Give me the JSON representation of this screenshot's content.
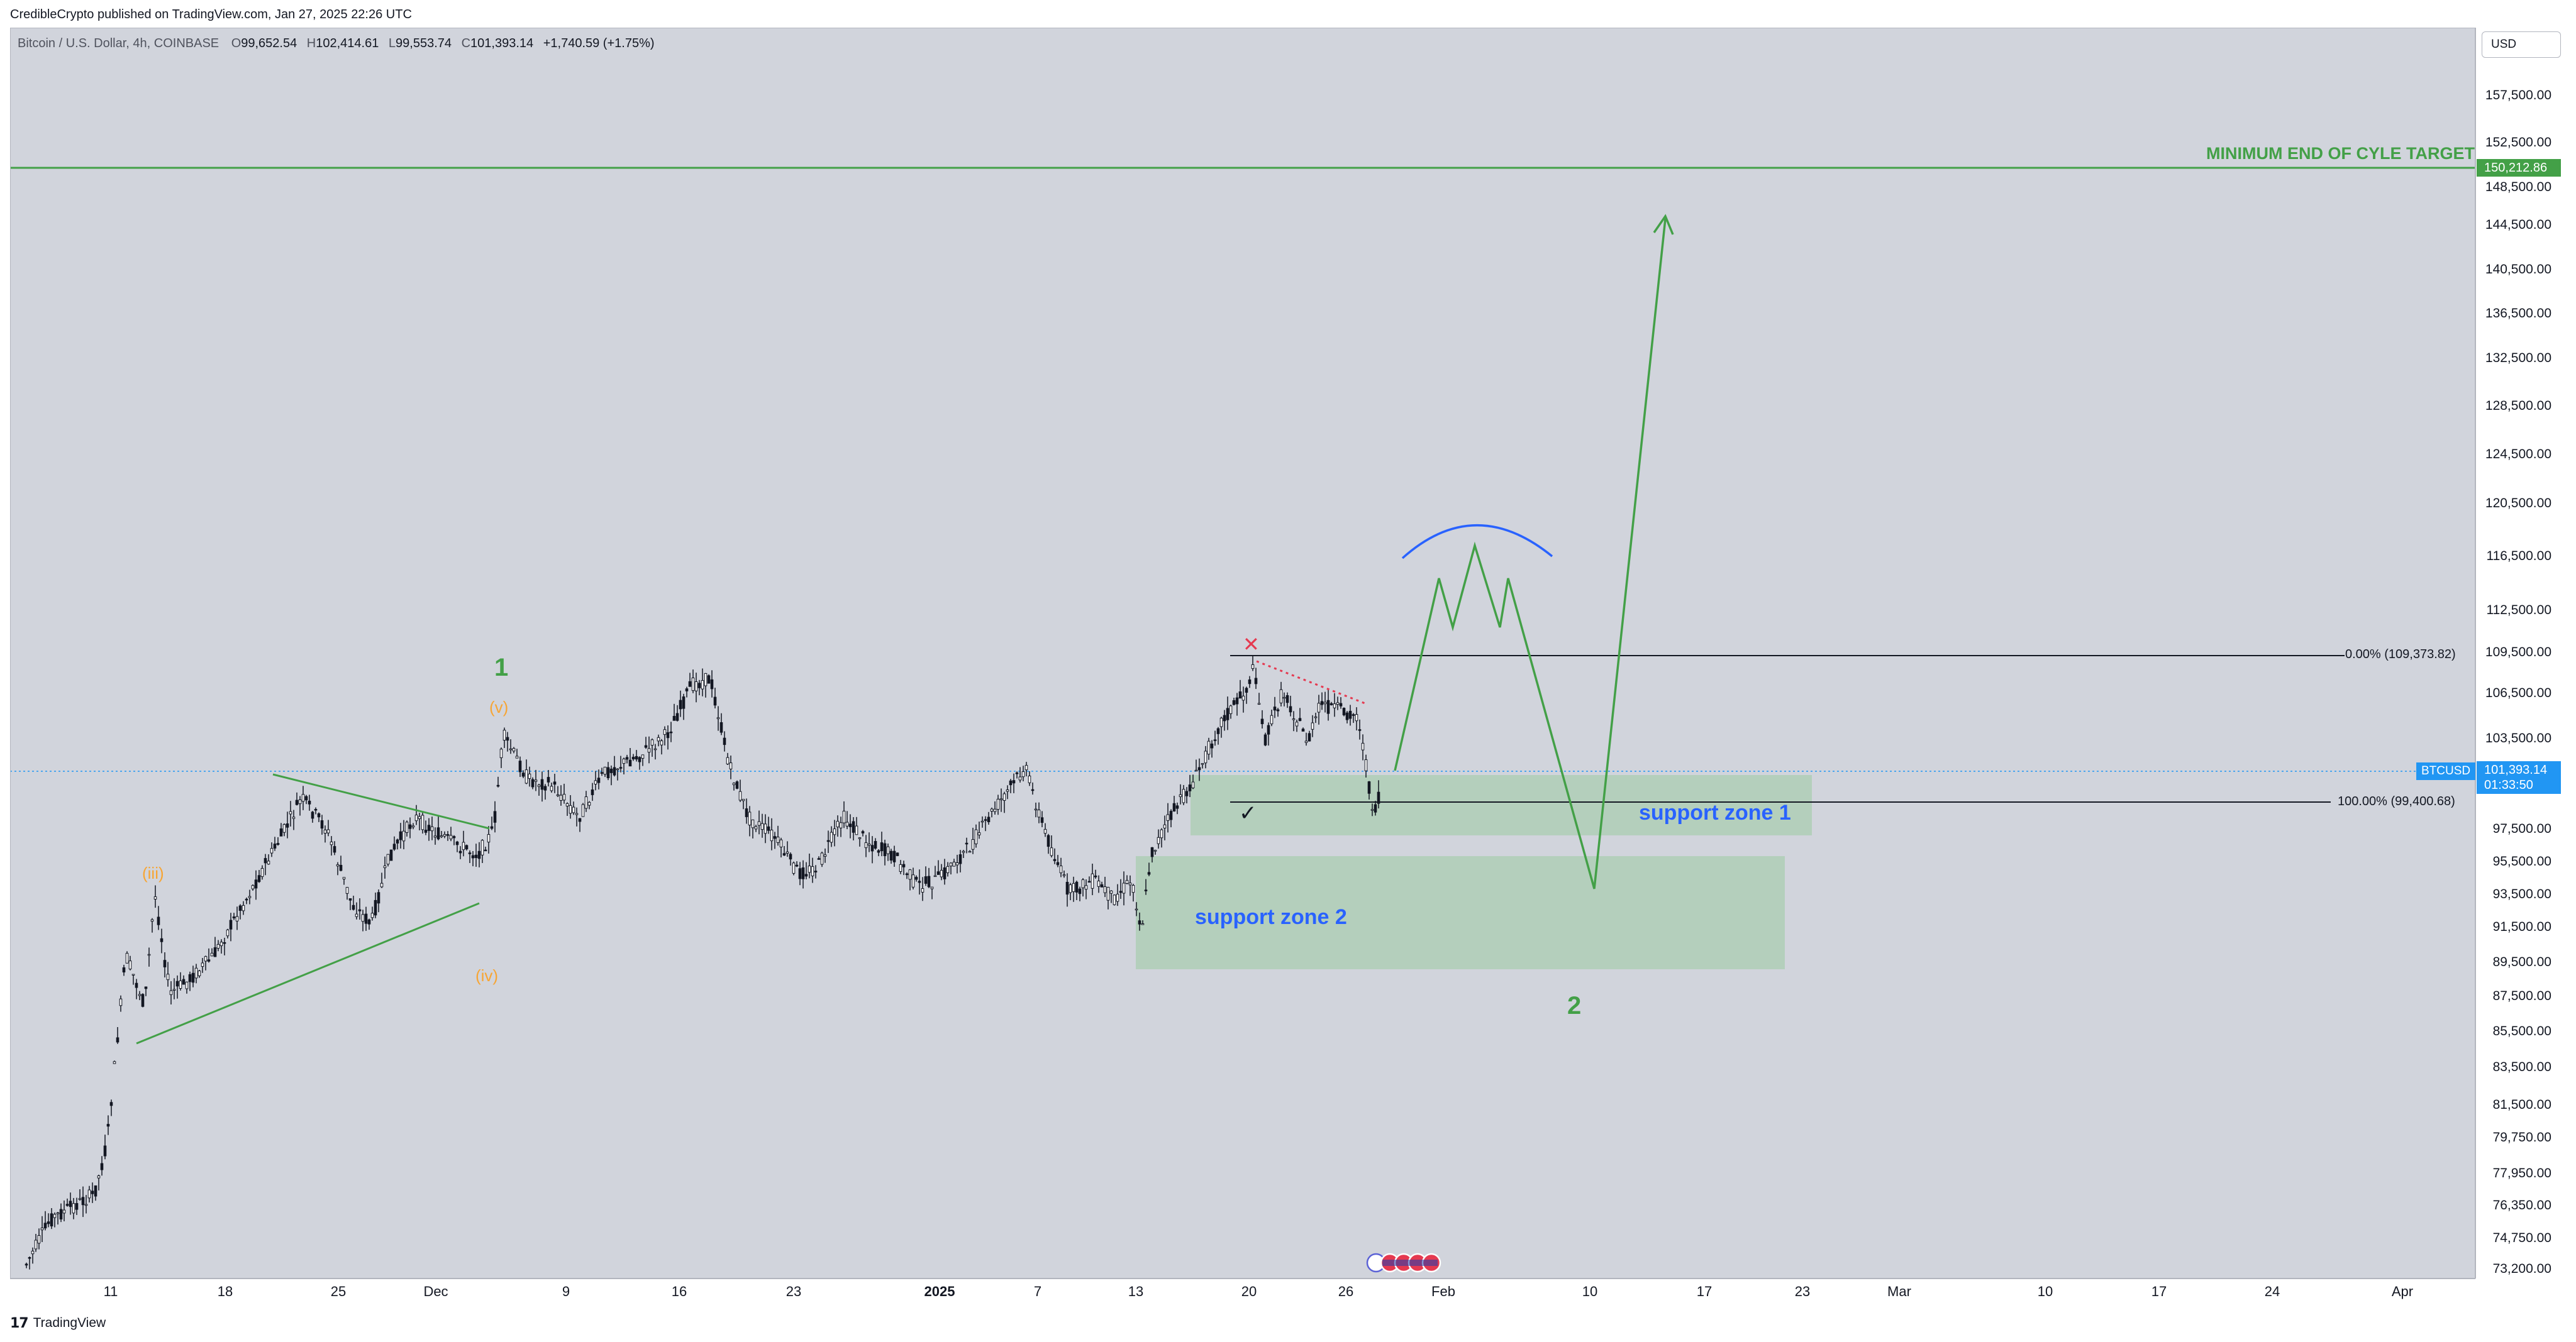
{
  "header": {
    "published_by": "CredibleCrypto published on TradingView.com, Jan 27, 2025 22:26 UTC"
  },
  "ticker": {
    "name": "Bitcoin / U.S. Dollar, 4h, COINBASE",
    "open_label": "O",
    "open": "99,652.54",
    "high_label": "H",
    "high": "102,414.61",
    "low_label": "L",
    "low": "99,553.74",
    "close_label": "C",
    "close": "101,393.14",
    "change": "+1,740.59 (+1.75%)"
  },
  "currency": "USD",
  "price_ticks": [
    "157,500.00",
    "152,500.00",
    "148,500.00",
    "144,500.00",
    "140,500.00",
    "136,500.00",
    "132,500.00",
    "128,500.00",
    "124,500.00",
    "120,500.00",
    "116,500.00",
    "112,500.00",
    "109,500.00",
    "106,500.00",
    "103,500.00",
    "97,500.00",
    "95,500.00",
    "93,500.00",
    "91,500.00",
    "89,500.00",
    "87,500.00",
    "85,500.00",
    "83,500.00",
    "81,500.00",
    "79,750.00",
    "77,950.00",
    "76,350.00",
    "74,750.00",
    "73,200.00"
  ],
  "time_ticks": [
    "11",
    "18",
    "25",
    "Dec",
    "9",
    "16",
    "23",
    "2025",
    "7",
    "13",
    "20",
    "26",
    "Feb",
    "10",
    "17",
    "23",
    "Mar",
    "10",
    "17",
    "24",
    "Apr"
  ],
  "badges": {
    "target_price": "150,212.86",
    "symbol": "BTCUSD",
    "last_price": "101,393.14",
    "countdown": "01:33:50"
  },
  "annotations": {
    "target_label": "MINIMUM END OF CYLE TARGET",
    "fib_0": "0.00% (109,373.82)",
    "fib_100": "100.00% (99,400.68)",
    "support_zone_1": "support zone 1",
    "support_zone_2": "support zone 2",
    "wave_1": "1",
    "wave_2": "2",
    "wave_v": "(v)",
    "wave_iii": "(iii)",
    "wave_iv": "(iv)",
    "check_mark": "✓",
    "x_mark": "✕"
  },
  "colors": {
    "chart_bg": "#d1d4dc",
    "green": "#43a047",
    "blue": "#2962ff",
    "orange": "#f7a534",
    "red": "#e53950",
    "zone_fill": "#a9cdb1",
    "candle": "#131722",
    "price_blue": "#2196f3"
  },
  "footer": {
    "brand": "TradingView",
    "logo": "tradingview-logo-icon"
  }
}
